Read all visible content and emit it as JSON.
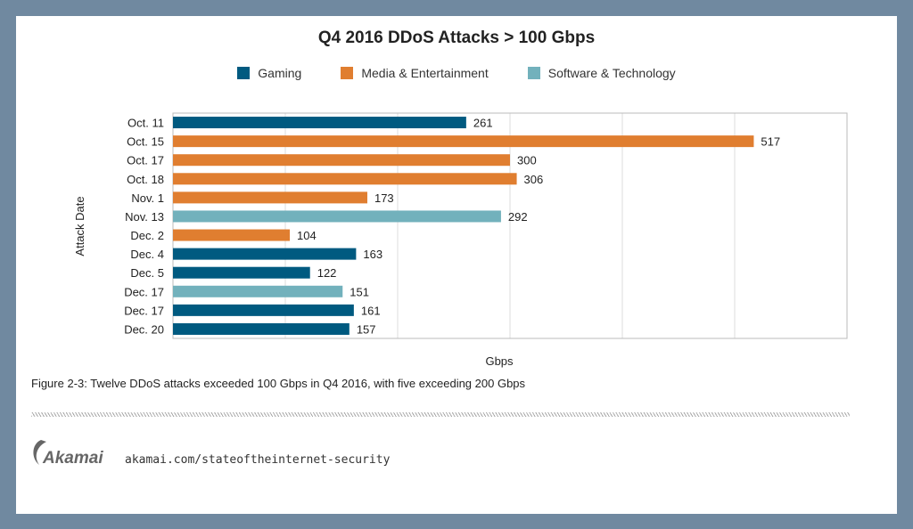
{
  "chart_data": {
    "type": "bar",
    "orientation": "horizontal",
    "title": "Q4 2016 DDoS Attacks > 100 Gbps",
    "xlabel": "Gbps",
    "ylabel": "Attack Date",
    "xlim": [
      0,
      600
    ],
    "grid": true,
    "legend_position": "top",
    "legend": [
      {
        "name": "Gaming",
        "color": "#005a80"
      },
      {
        "name": "Media & Entertainment",
        "color": "#e07e30"
      },
      {
        "name": "Software & Technology",
        "color": "#72b1bc"
      }
    ],
    "categories": [
      "Oct. 11",
      "Oct. 15",
      "Oct. 17",
      "Oct. 18",
      "Nov. 1",
      "Nov. 13",
      "Dec. 2",
      "Dec. 4",
      "Dec. 5",
      "Dec. 17",
      "Dec. 17",
      "Dec. 20"
    ],
    "values": [
      261,
      517,
      300,
      306,
      173,
      292,
      104,
      163,
      122,
      151,
      161,
      157
    ],
    "bar_series": [
      "Gaming",
      "Media & Entertainment",
      "Media & Entertainment",
      "Media & Entertainment",
      "Media & Entertainment",
      "Software & Technology",
      "Media & Entertainment",
      "Gaming",
      "Gaming",
      "Software & Technology",
      "Gaming",
      "Gaming"
    ]
  },
  "caption": "Figure 2-3: Twelve DDoS attacks exceeded 100 Gbps in Q4 2016, with five exceeding 200 Gbps",
  "footer": {
    "logo_text": "Akamai",
    "url": "akamai.com/stateoftheinternet-security"
  }
}
